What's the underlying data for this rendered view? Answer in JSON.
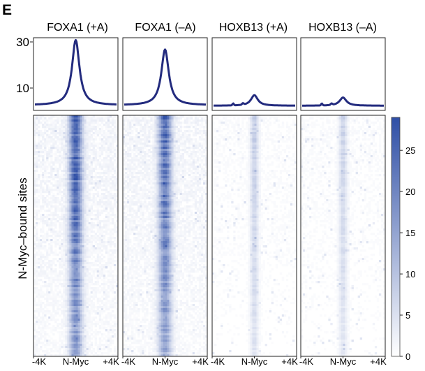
{
  "panel_label": "E",
  "y_axis_label": "N-Myc–bound sites",
  "x_tick_labels": [
    "-4K",
    "N-Myc",
    "+4K"
  ],
  "colors": {
    "line": "#232b7e",
    "heat_max": "#2f4fa6",
    "heat_min": "#ffffff"
  },
  "chart_data": {
    "type": "heatmap",
    "profile_ylim": [
      0,
      31
    ],
    "profile_yticks": [
      10,
      30
    ],
    "colorbar": {
      "min": 0,
      "max": 29,
      "ticks": [
        0,
        5,
        10,
        15,
        20,
        25
      ]
    },
    "panels": [
      {
        "title": "FOXA1 (+A)",
        "profile_peak": 30,
        "profile_baseline": 2.2,
        "heat_peak": 23
      },
      {
        "title": "FOXA1 (–A)",
        "profile_peak": 26,
        "profile_baseline": 2.2,
        "heat_peak": 21
      },
      {
        "title": "HOXB13 (+A)",
        "profile_peak": 6.5,
        "profile_baseline": 2.0,
        "heat_peak": 7
      },
      {
        "title": "HOXB13 (–A)",
        "profile_peak": 5.5,
        "profile_baseline": 2.0,
        "heat_peak": 6
      }
    ]
  }
}
